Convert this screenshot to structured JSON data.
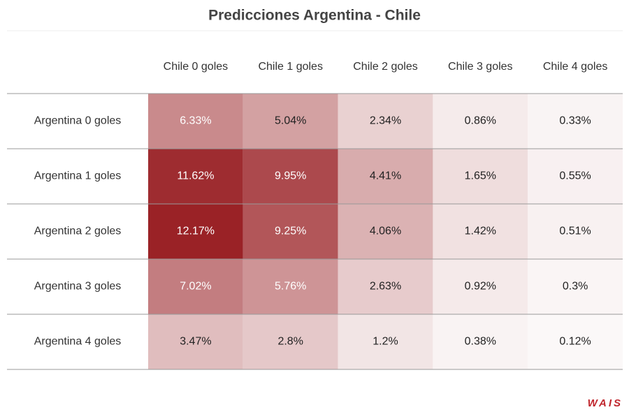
{
  "chart_data": {
    "type": "heatmap",
    "title": "Predicciones Argentina - Chile",
    "columns": [
      "Chile 0 goles",
      "Chile 1 goles",
      "Chile 2 goles",
      "Chile 3 goles",
      "Chile 4 goles"
    ],
    "rows": [
      "Argentina 0 goles",
      "Argentina 1 goles",
      "Argentina 2 goles",
      "Argentina 3 goles",
      "Argentina 4 goles"
    ],
    "values": [
      [
        6.33,
        5.04,
        2.34,
        0.86,
        0.33
      ],
      [
        11.62,
        9.95,
        4.41,
        1.65,
        0.55
      ],
      [
        12.17,
        9.25,
        4.06,
        1.42,
        0.51
      ],
      [
        7.02,
        5.76,
        2.63,
        0.92,
        0.3
      ],
      [
        3.47,
        2.8,
        1.2,
        0.38,
        0.12
      ]
    ],
    "value_labels": [
      [
        "6.33%",
        "5.04%",
        "2.34%",
        "0.86%",
        "0.33%"
      ],
      [
        "11.62%",
        "9.95%",
        "4.41%",
        "1.65%",
        "0.55%"
      ],
      [
        "12.17%",
        "9.25%",
        "4.06%",
        "1.42%",
        "0.51%"
      ],
      [
        "7.02%",
        "5.76%",
        "2.63%",
        "0.92%",
        "0.3%"
      ],
      [
        "3.47%",
        "2.8%",
        "1.2%",
        "0.38%",
        "0.12%"
      ]
    ],
    "color_range": [
      "#fbf8f8",
      "#9a2226"
    ],
    "credit": "WAIS"
  }
}
